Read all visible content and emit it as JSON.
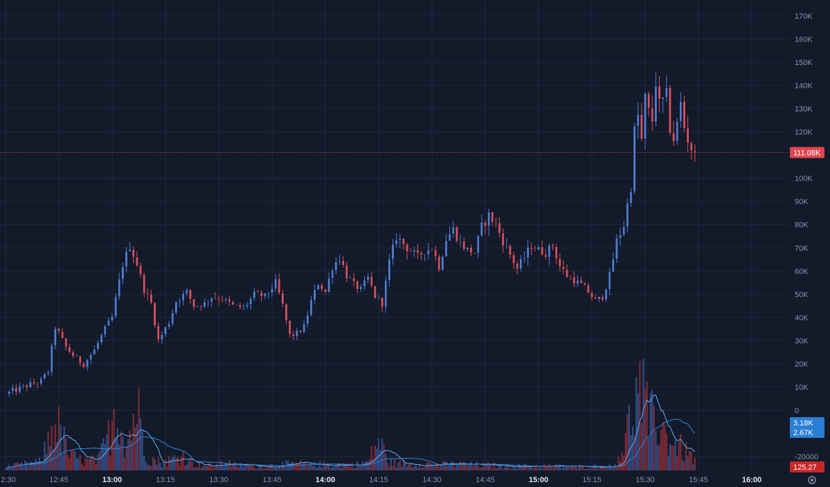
{
  "chart_data": {
    "type": "candlestick",
    "price_axis": {
      "ticks": [
        {
          "value": 170000,
          "label": "170K"
        },
        {
          "value": 160000,
          "label": "160K"
        },
        {
          "value": 150000,
          "label": "150K"
        },
        {
          "value": 140000,
          "label": "140K"
        },
        {
          "value": 130000,
          "label": "130K"
        },
        {
          "value": 120000,
          "label": "120K"
        },
        {
          "value": 100000,
          "label": "100K"
        },
        {
          "value": 90000,
          "label": "90K"
        },
        {
          "value": 80000,
          "label": "80K"
        },
        {
          "value": 70000,
          "label": "70K"
        },
        {
          "value": 60000,
          "label": "60K"
        },
        {
          "value": 50000,
          "label": "50K"
        },
        {
          "value": 40000,
          "label": "40K"
        },
        {
          "value": 30000,
          "label": "30K"
        },
        {
          "value": 20000,
          "label": "20K"
        },
        {
          "value": 10000,
          "label": "10K"
        },
        {
          "value": 0,
          "label": "0"
        },
        {
          "value": -20000,
          "label": "-20000"
        }
      ],
      "range": [
        -20000,
        175000
      ]
    },
    "time_axis": {
      "ticks": [
        {
          "label": "2:30",
          "minutes": 750,
          "bold": false
        },
        {
          "label": "12:45",
          "minutes": 765,
          "bold": false
        },
        {
          "label": "13:00",
          "minutes": 780,
          "bold": true
        },
        {
          "label": "13:15",
          "minutes": 795,
          "bold": false
        },
        {
          "label": "13:30",
          "minutes": 810,
          "bold": false
        },
        {
          "label": "13:45",
          "minutes": 825,
          "bold": false
        },
        {
          "label": "14:00",
          "minutes": 840,
          "bold": true
        },
        {
          "label": "14:15",
          "minutes": 855,
          "bold": false
        },
        {
          "label": "14:30",
          "minutes": 870,
          "bold": false
        },
        {
          "label": "14:45",
          "minutes": 885,
          "bold": false
        },
        {
          "label": "15:00",
          "minutes": 900,
          "bold": true
        },
        {
          "label": "15:15",
          "minutes": 915,
          "bold": false
        },
        {
          "label": "15:30",
          "minutes": 930,
          "bold": false
        },
        {
          "label": "15:45",
          "minutes": 945,
          "bold": false
        },
        {
          "label": "16:00",
          "minutes": 960,
          "bold": true
        }
      ],
      "range_minutes": [
        749.6,
        968.0
      ]
    },
    "grid": true,
    "current_price": {
      "value": 111080,
      "label": "111.08K"
    },
    "volume_tags": [
      {
        "label": "3.18K",
        "color": "#2a7fd4"
      },
      {
        "label": "2.67K",
        "color": "#2a7fd4"
      },
      {
        "label": "125.27",
        "color": "#c62828"
      }
    ],
    "colors": {
      "up": "#4f7fd6",
      "down": "#d9535f",
      "volume_up": "#2e4c86",
      "volume_down": "#7b2a34",
      "ma_fast": "#5aa7e8",
      "ma_slow": "#2f7fcf",
      "price_line": "#e0464f"
    },
    "anchors": [
      [
        750,
        7000
      ],
      [
        755,
        10000
      ],
      [
        760,
        12500
      ],
      [
        762,
        17000
      ],
      [
        764,
        36000
      ],
      [
        767,
        27000
      ],
      [
        770,
        22000
      ],
      [
        772,
        20000
      ],
      [
        775,
        26000
      ],
      [
        778,
        35000
      ],
      [
        780,
        40000
      ],
      [
        781,
        48000
      ],
      [
        783,
        63000
      ],
      [
        785,
        71000
      ],
      [
        787,
        63000
      ],
      [
        789,
        52000
      ],
      [
        791,
        46000
      ],
      [
        793,
        30000
      ],
      [
        796,
        38000
      ],
      [
        798,
        47000
      ],
      [
        801,
        51000
      ],
      [
        803,
        45000
      ],
      [
        806,
        46000
      ],
      [
        808,
        49000
      ],
      [
        811,
        48000
      ],
      [
        814,
        45000
      ],
      [
        817,
        44000
      ],
      [
        820,
        50000
      ],
      [
        823,
        49000
      ],
      [
        826,
        55000
      ],
      [
        828,
        45000
      ],
      [
        830,
        32000
      ],
      [
        832,
        33000
      ],
      [
        834,
        36000
      ],
      [
        836,
        47000
      ],
      [
        838,
        55000
      ],
      [
        840,
        51000
      ],
      [
        842,
        62000
      ],
      [
        844,
        66000
      ],
      [
        846,
        58000
      ],
      [
        848,
        54000
      ],
      [
        850,
        52000
      ],
      [
        852,
        57000
      ],
      [
        854,
        49000
      ],
      [
        856,
        46000
      ],
      [
        858,
        64000
      ],
      [
        860,
        75000
      ],
      [
        863,
        70000
      ],
      [
        866,
        66000
      ],
      [
        868,
        69000
      ],
      [
        870,
        70000
      ],
      [
        872,
        62000
      ],
      [
        874,
        74000
      ],
      [
        876,
        78000
      ],
      [
        878,
        72000
      ],
      [
        880,
        69000
      ],
      [
        882,
        68000
      ],
      [
        884,
        79000
      ],
      [
        886,
        84000
      ],
      [
        888,
        80000
      ],
      [
        890,
        73000
      ],
      [
        892,
        67000
      ],
      [
        894,
        61000
      ],
      [
        896,
        66000
      ],
      [
        898,
        71000
      ],
      [
        900,
        69000
      ],
      [
        902,
        68000
      ],
      [
        904,
        71000
      ],
      [
        906,
        62000
      ],
      [
        908,
        58000
      ],
      [
        910,
        56000
      ],
      [
        912,
        54000
      ],
      [
        914,
        51000
      ],
      [
        916,
        47000
      ],
      [
        918,
        49000
      ],
      [
        920,
        58000
      ],
      [
        922,
        73000
      ],
      [
        924,
        80000
      ],
      [
        926,
        97000
      ],
      [
        927,
        120000
      ],
      [
        928,
        127000
      ],
      [
        929,
        116000
      ],
      [
        930,
        134000
      ],
      [
        931,
        128000
      ],
      [
        932,
        125000
      ],
      [
        933,
        142000
      ],
      [
        934,
        131000
      ],
      [
        936,
        135000
      ],
      [
        937,
        122000
      ],
      [
        938,
        117000
      ],
      [
        939,
        123000
      ],
      [
        940,
        132000
      ],
      [
        941,
        122000
      ],
      [
        942,
        117000
      ],
      [
        943,
        113000
      ],
      [
        944,
        111080
      ]
    ],
    "volume_anchors": [
      [
        750,
        2000
      ],
      [
        760,
        5000
      ],
      [
        764,
        30000
      ],
      [
        768,
        9000
      ],
      [
        772,
        5500
      ],
      [
        776,
        6000
      ],
      [
        779,
        20000
      ],
      [
        781,
        40000
      ],
      [
        784,
        15000
      ],
      [
        787,
        38000
      ],
      [
        790,
        8000
      ],
      [
        794,
        4500
      ],
      [
        797,
        6500
      ],
      [
        800,
        9000
      ],
      [
        803,
        3500
      ],
      [
        806,
        3000
      ],
      [
        809,
        2500
      ],
      [
        812,
        5000
      ],
      [
        815,
        2800
      ],
      [
        818,
        3200
      ],
      [
        821,
        2200
      ],
      [
        824,
        2800
      ],
      [
        827,
        3200
      ],
      [
        830,
        3800
      ],
      [
        833,
        4000
      ],
      [
        836,
        3000
      ],
      [
        839,
        3600
      ],
      [
        842,
        3200
      ],
      [
        845,
        3600
      ],
      [
        848,
        3200
      ],
      [
        852,
        5000
      ],
      [
        855,
        18000
      ],
      [
        858,
        4500
      ],
      [
        861,
        4000
      ],
      [
        864,
        3600
      ],
      [
        868,
        4200
      ],
      [
        872,
        3200
      ],
      [
        875,
        3800
      ],
      [
        878,
        3600
      ],
      [
        882,
        3200
      ],
      [
        886,
        3000
      ],
      [
        890,
        2600
      ],
      [
        894,
        2600
      ],
      [
        898,
        2600
      ],
      [
        902,
        2600
      ],
      [
        906,
        2400
      ],
      [
        910,
        2200
      ],
      [
        914,
        2200
      ],
      [
        918,
        2500
      ],
      [
        921,
        2300
      ],
      [
        924,
        15000
      ],
      [
        927,
        40000
      ],
      [
        929,
        48000
      ],
      [
        931,
        28000
      ],
      [
        933,
        32000
      ],
      [
        936,
        20000
      ],
      [
        939,
        15000
      ],
      [
        942,
        10000
      ],
      [
        944,
        6000
      ]
    ]
  }
}
